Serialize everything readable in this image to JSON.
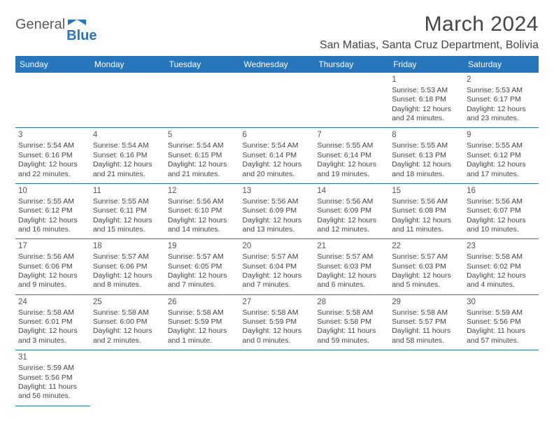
{
  "logo": {
    "part1": "General",
    "part2": "Blue"
  },
  "title": "March 2024",
  "location": "San Matias, Santa Cruz Department, Bolivia",
  "day_headers": [
    "Sunday",
    "Monday",
    "Tuesday",
    "Wednesday",
    "Thursday",
    "Friday",
    "Saturday"
  ],
  "header_bg": "#2776bb",
  "header_fg": "#ffffff",
  "cell_border_color": "#2776bb",
  "text_color": "#444444",
  "weeks": [
    [
      null,
      null,
      null,
      null,
      null,
      {
        "n": "1",
        "sr": "5:53 AM",
        "ss": "6:18 PM",
        "dl": "12 hours and 24 minutes."
      },
      {
        "n": "2",
        "sr": "5:53 AM",
        "ss": "6:17 PM",
        "dl": "12 hours and 23 minutes."
      }
    ],
    [
      {
        "n": "3",
        "sr": "5:54 AM",
        "ss": "6:16 PM",
        "dl": "12 hours and 22 minutes."
      },
      {
        "n": "4",
        "sr": "5:54 AM",
        "ss": "6:16 PM",
        "dl": "12 hours and 21 minutes."
      },
      {
        "n": "5",
        "sr": "5:54 AM",
        "ss": "6:15 PM",
        "dl": "12 hours and 21 minutes."
      },
      {
        "n": "6",
        "sr": "5:54 AM",
        "ss": "6:14 PM",
        "dl": "12 hours and 20 minutes."
      },
      {
        "n": "7",
        "sr": "5:55 AM",
        "ss": "6:14 PM",
        "dl": "12 hours and 19 minutes."
      },
      {
        "n": "8",
        "sr": "5:55 AM",
        "ss": "6:13 PM",
        "dl": "12 hours and 18 minutes."
      },
      {
        "n": "9",
        "sr": "5:55 AM",
        "ss": "6:12 PM",
        "dl": "12 hours and 17 minutes."
      }
    ],
    [
      {
        "n": "10",
        "sr": "5:55 AM",
        "ss": "6:12 PM",
        "dl": "12 hours and 16 minutes."
      },
      {
        "n": "11",
        "sr": "5:55 AM",
        "ss": "6:11 PM",
        "dl": "12 hours and 15 minutes."
      },
      {
        "n": "12",
        "sr": "5:56 AM",
        "ss": "6:10 PM",
        "dl": "12 hours and 14 minutes."
      },
      {
        "n": "13",
        "sr": "5:56 AM",
        "ss": "6:09 PM",
        "dl": "12 hours and 13 minutes."
      },
      {
        "n": "14",
        "sr": "5:56 AM",
        "ss": "6:09 PM",
        "dl": "12 hours and 12 minutes."
      },
      {
        "n": "15",
        "sr": "5:56 AM",
        "ss": "6:08 PM",
        "dl": "12 hours and 11 minutes."
      },
      {
        "n": "16",
        "sr": "5:56 AM",
        "ss": "6:07 PM",
        "dl": "12 hours and 10 minutes."
      }
    ],
    [
      {
        "n": "17",
        "sr": "5:56 AM",
        "ss": "6:06 PM",
        "dl": "12 hours and 9 minutes."
      },
      {
        "n": "18",
        "sr": "5:57 AM",
        "ss": "6:06 PM",
        "dl": "12 hours and 8 minutes."
      },
      {
        "n": "19",
        "sr": "5:57 AM",
        "ss": "6:05 PM",
        "dl": "12 hours and 7 minutes."
      },
      {
        "n": "20",
        "sr": "5:57 AM",
        "ss": "6:04 PM",
        "dl": "12 hours and 7 minutes."
      },
      {
        "n": "21",
        "sr": "5:57 AM",
        "ss": "6:03 PM",
        "dl": "12 hours and 6 minutes."
      },
      {
        "n": "22",
        "sr": "5:57 AM",
        "ss": "6:03 PM",
        "dl": "12 hours and 5 minutes."
      },
      {
        "n": "23",
        "sr": "5:58 AM",
        "ss": "6:02 PM",
        "dl": "12 hours and 4 minutes."
      }
    ],
    [
      {
        "n": "24",
        "sr": "5:58 AM",
        "ss": "6:01 PM",
        "dl": "12 hours and 3 minutes."
      },
      {
        "n": "25",
        "sr": "5:58 AM",
        "ss": "6:00 PM",
        "dl": "12 hours and 2 minutes."
      },
      {
        "n": "26",
        "sr": "5:58 AM",
        "ss": "5:59 PM",
        "dl": "12 hours and 1 minute."
      },
      {
        "n": "27",
        "sr": "5:58 AM",
        "ss": "5:59 PM",
        "dl": "12 hours and 0 minutes."
      },
      {
        "n": "28",
        "sr": "5:58 AM",
        "ss": "5:58 PM",
        "dl": "11 hours and 59 minutes."
      },
      {
        "n": "29",
        "sr": "5:58 AM",
        "ss": "5:57 PM",
        "dl": "11 hours and 58 minutes."
      },
      {
        "n": "30",
        "sr": "5:59 AM",
        "ss": "5:56 PM",
        "dl": "11 hours and 57 minutes."
      }
    ],
    [
      {
        "n": "31",
        "sr": "5:59 AM",
        "ss": "5:56 PM",
        "dl": "11 hours and 56 minutes."
      },
      null,
      null,
      null,
      null,
      null,
      null
    ]
  ],
  "labels": {
    "sunrise": "Sunrise:",
    "sunset": "Sunset:",
    "daylight": "Daylight:"
  }
}
